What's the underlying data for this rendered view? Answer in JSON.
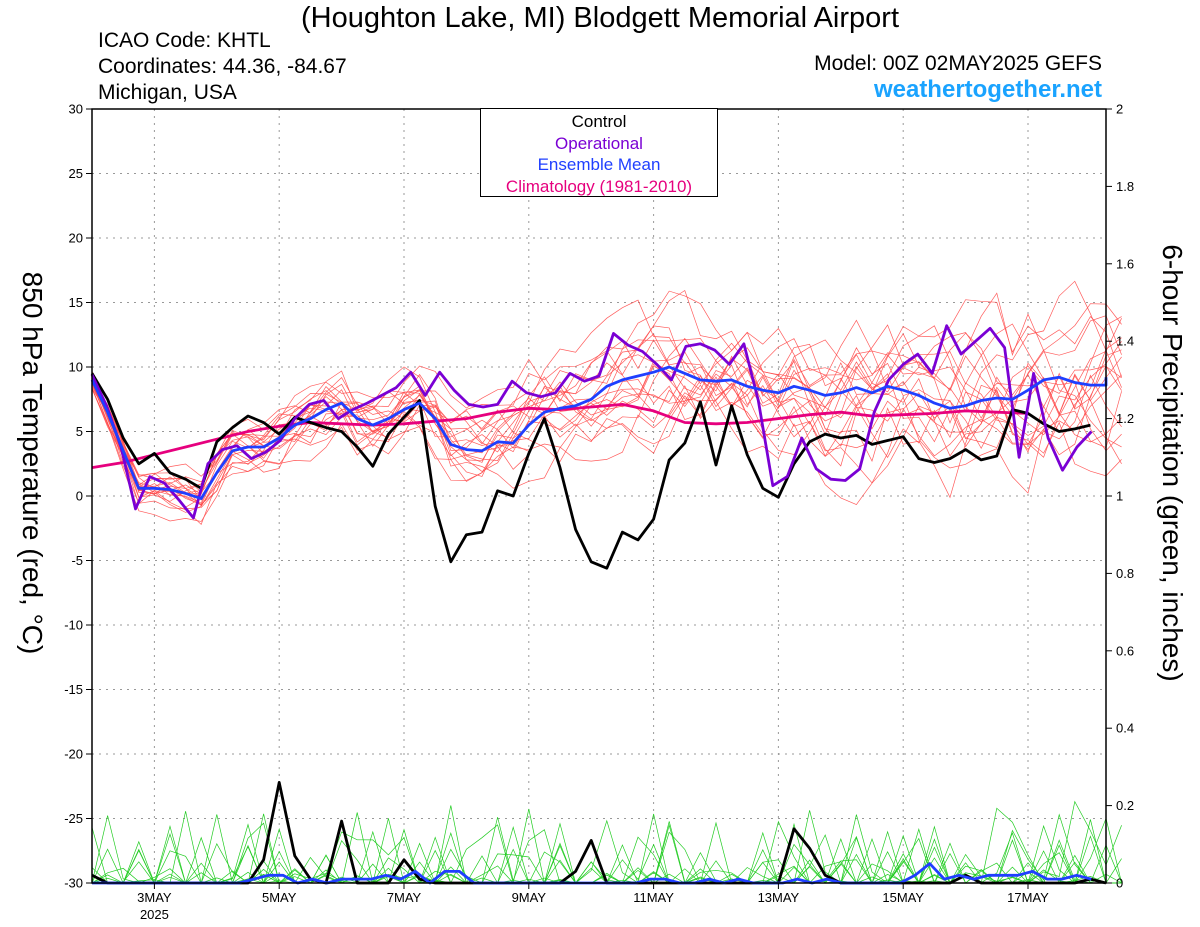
{
  "header": {
    "title": "(Houghton Lake, MI) Blodgett Memorial Airport",
    "icao": "ICAO Code: KHTL",
    "coordinates": "Coordinates: 44.36, -84.67",
    "region": "Michigan, USA",
    "model": "Model: 00Z 02MAY2025 GEFS",
    "site": "weathertogether.net"
  },
  "colors": {
    "control": "#000000",
    "operational": "#7a00d4",
    "ensemble_mean": "#1f3fff",
    "climatology": "#e6007e",
    "members_temp": "#ff4a4a",
    "members_precip": "#22cc22",
    "grid": "#999999"
  },
  "chart_data": {
    "type": "line",
    "title": "(Houghton Lake, MI) Blodgett Memorial Airport",
    "ylabel": "850 hPa Temperature (red, °C)",
    "y2label": "6-hour Precipitation (green, inches)",
    "ylim": [
      -30,
      30
    ],
    "y2lim": [
      0,
      2
    ],
    "yticks": [
      30,
      25,
      20,
      15,
      10,
      5,
      0,
      -5,
      -10,
      -15,
      -20,
      -25,
      -30
    ],
    "y2ticks": [
      2,
      1.8,
      1.6,
      1.4,
      1.2,
      1,
      0.8,
      0.6,
      0.4,
      0.2,
      0
    ],
    "xlim": [
      "2025-05-02T00",
      "2025-05-18T06"
    ],
    "x_step_hours": 6,
    "xticks": [
      {
        "label": "3MAY",
        "sub": "2025",
        "day": 3
      },
      {
        "label": "5MAY",
        "day": 5
      },
      {
        "label": "7MAY",
        "day": 7
      },
      {
        "label": "9MAY",
        "day": 9
      },
      {
        "label": "11MAY",
        "day": 11
      },
      {
        "label": "13MAY",
        "day": 13
      },
      {
        "label": "15MAY",
        "day": 15
      },
      {
        "label": "17MAY",
        "day": 17
      }
    ],
    "grid": true,
    "legend": {
      "placement": "top-center",
      "entries": [
        "Control",
        "Operational",
        "Ensemble Mean",
        "Climatology (1981-2010)"
      ]
    },
    "series": [
      {
        "name": "Control",
        "axis": "temperature",
        "values": [
          9.5,
          7.5,
          4.5,
          2.5,
          3.3,
          1.8,
          1.3,
          0.6,
          4.2,
          5.3,
          6.2,
          5.7,
          4.8,
          6.1,
          5.7,
          5.3,
          5.0,
          3.8,
          2.3,
          4.8,
          6.1,
          7.4,
          -0.8,
          -5.1,
          -3.0,
          -2.8,
          0.4,
          0.0,
          3.3,
          6.0,
          2.2,
          -2.6,
          -5.1,
          -5.6,
          -2.8,
          -3.4,
          -1.8,
          2.8,
          4.1,
          7.3,
          2.4,
          7.0,
          3.2,
          0.6,
          -0.1,
          2.5,
          4.2,
          4.8,
          4.5,
          4.7,
          4.0,
          4.3,
          4.6,
          2.9,
          2.6,
          2.9,
          3.6,
          2.8,
          3.1,
          6.7,
          6.4,
          5.6,
          5.0,
          5.2,
          5.5
        ]
      },
      {
        "name": "Operational",
        "axis": "temperature",
        "values": [
          9.4,
          7.0,
          3.8,
          -1.0,
          1.5,
          1.0,
          -0.3,
          -1.7,
          2.5,
          3.6,
          3.9,
          2.9,
          3.4,
          4.3,
          6.0,
          7.1,
          7.4,
          6.0,
          6.7,
          7.2,
          7.8,
          8.4,
          9.6,
          7.8,
          9.6,
          8.2,
          7.1,
          6.9,
          7.1,
          8.9,
          8.0,
          7.7,
          8.0,
          9.5,
          8.9,
          9.3,
          12.6,
          11.7,
          11.2,
          10.2,
          9.0,
          11.6,
          11.8,
          11.3,
          10.2,
          11.8,
          7.4,
          0.8,
          1.5,
          4.5,
          2.1,
          1.3,
          1.2,
          2.1,
          6.5,
          9.0,
          10.2,
          11.0,
          9.5,
          13.2,
          11.0,
          12.0,
          13.0,
          11.5,
          3.0,
          9.5,
          4.5,
          2.0,
          3.8,
          5.0
        ]
      },
      {
        "name": "Ensemble Mean",
        "axis": "temperature",
        "values": [
          9.0,
          6.5,
          3.5,
          0.6,
          0.6,
          0.5,
          0.2,
          -0.2,
          1.8,
          3.5,
          3.8,
          3.8,
          4.5,
          5.5,
          6.0,
          6.7,
          7.2,
          6.0,
          5.5,
          6.0,
          6.7,
          7.2,
          6.0,
          4.0,
          3.6,
          3.5,
          4.2,
          4.1,
          5.5,
          6.5,
          6.8,
          7.0,
          7.5,
          8.5,
          9.0,
          9.3,
          9.6,
          10.0,
          9.5,
          9.0,
          8.9,
          9.0,
          8.5,
          8.2,
          8.0,
          8.5,
          8.2,
          7.8,
          8.0,
          8.4,
          8.0,
          8.5,
          8.2,
          7.8,
          7.2,
          6.8,
          7.0,
          7.4,
          7.6,
          7.5,
          8.2,
          9.0,
          9.2,
          8.8,
          8.6,
          8.6,
          9.2
        ]
      },
      {
        "name": "Climatology (1981-2010)",
        "axis": "temperature",
        "values": [
          2.2,
          2.6,
          3.2,
          3.8,
          4.4,
          5.0,
          5.4,
          5.7,
          5.6,
          5.5,
          5.6,
          5.8,
          6.0,
          6.5,
          6.8,
          6.7,
          6.9,
          7.1,
          6.6,
          5.7,
          5.6,
          5.7,
          6.0,
          6.3,
          6.5,
          6.2,
          6.3,
          6.4,
          6.6,
          6.5,
          6.4
        ]
      },
      {
        "name": "Control precipitation",
        "axis": "precipitation",
        "values": [
          0.02,
          0,
          0,
          0,
          0,
          0,
          0,
          0,
          0,
          0,
          0,
          0.06,
          0.26,
          0.07,
          0.01,
          0,
          0.16,
          0,
          0,
          0,
          0.06,
          0.01,
          0,
          0,
          0,
          0,
          0,
          0,
          0,
          0,
          0,
          0.03,
          0.11,
          0,
          0,
          0,
          0,
          0,
          0,
          0,
          0,
          0,
          0,
          0,
          0,
          0.14,
          0.09,
          0.02,
          0,
          0,
          0,
          0,
          0,
          0,
          0,
          0,
          0.02,
          0,
          0,
          0,
          0,
          0,
          0,
          0,
          0.01,
          0
        ]
      },
      {
        "name": "Ensemble Mean precipitation",
        "axis": "precipitation",
        "values": [
          0,
          0,
          0,
          0,
          0,
          0,
          0,
          0,
          0,
          0,
          0,
          0.01,
          0.02,
          0.02,
          0,
          0.01,
          0,
          0.01,
          0.01,
          0.01,
          0.02,
          0.01,
          0.03,
          0,
          0.03,
          0.03,
          0,
          0,
          0,
          0,
          0,
          0,
          0,
          0,
          0,
          0,
          0,
          0,
          0.01,
          0.01,
          0,
          0,
          0.01,
          0,
          0.01,
          0,
          0,
          0,
          0.01,
          0,
          0.01,
          0,
          0,
          0,
          0,
          0,
          0.02,
          0.05,
          0.01,
          0.02,
          0.01,
          0.02,
          0.02,
          0.02,
          0.03,
          0.01,
          0.01,
          0.02,
          0.01
        ]
      }
    ]
  }
}
